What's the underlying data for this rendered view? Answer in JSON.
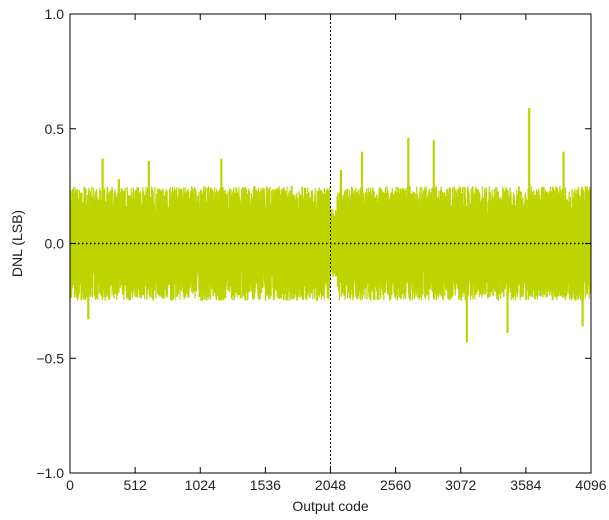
{
  "chart_data": {
    "type": "line",
    "title": "",
    "xlabel": "Output code",
    "ylabel": "DNL (LSB)",
    "xlim": [
      0,
      4096
    ],
    "ylim": [
      -1.0,
      1.0
    ],
    "xticks": [
      0,
      512,
      1024,
      1536,
      2048,
      2560,
      3072,
      3584,
      4096
    ],
    "xtick_labels": [
      "0",
      "512",
      "1024",
      "1536",
      "2048",
      "2560",
      "3072",
      "3584",
      "4096"
    ],
    "yticks": [
      -1.0,
      -0.5,
      0.0,
      0.5,
      1.0
    ],
    "ytick_labels": [
      "−1.0",
      "−0.5",
      "0.0",
      "0.5",
      "1.0"
    ],
    "grid": false,
    "reference_lines": [
      {
        "orientation": "vertical",
        "value": 2048,
        "style": "dotted"
      },
      {
        "orientation": "horizontal",
        "value": 0.0,
        "style": "dotted"
      }
    ],
    "series": [
      {
        "color": "#bcd400",
        "description": "Per-code DNL oscillating densely between about -0.25 and +0.25 LSB across all 4096 codes",
        "envelope_low": -0.25,
        "envelope_high": 0.25,
        "notable_points": [
          {
            "x": 144,
            "y": -0.33
          },
          {
            "x": 256,
            "y": 0.37
          },
          {
            "x": 384,
            "y": 0.28
          },
          {
            "x": 620,
            "y": 0.36
          },
          {
            "x": 1190,
            "y": 0.37
          },
          {
            "x": 2130,
            "y": 0.32
          },
          {
            "x": 2296,
            "y": 0.4
          },
          {
            "x": 2660,
            "y": 0.46
          },
          {
            "x": 2860,
            "y": 0.45
          },
          {
            "x": 3120,
            "y": -0.43
          },
          {
            "x": 3440,
            "y": -0.39
          },
          {
            "x": 3610,
            "y": 0.59
          },
          {
            "x": 3880,
            "y": 0.4
          },
          {
            "x": 4030,
            "y": -0.36
          }
        ]
      }
    ]
  }
}
